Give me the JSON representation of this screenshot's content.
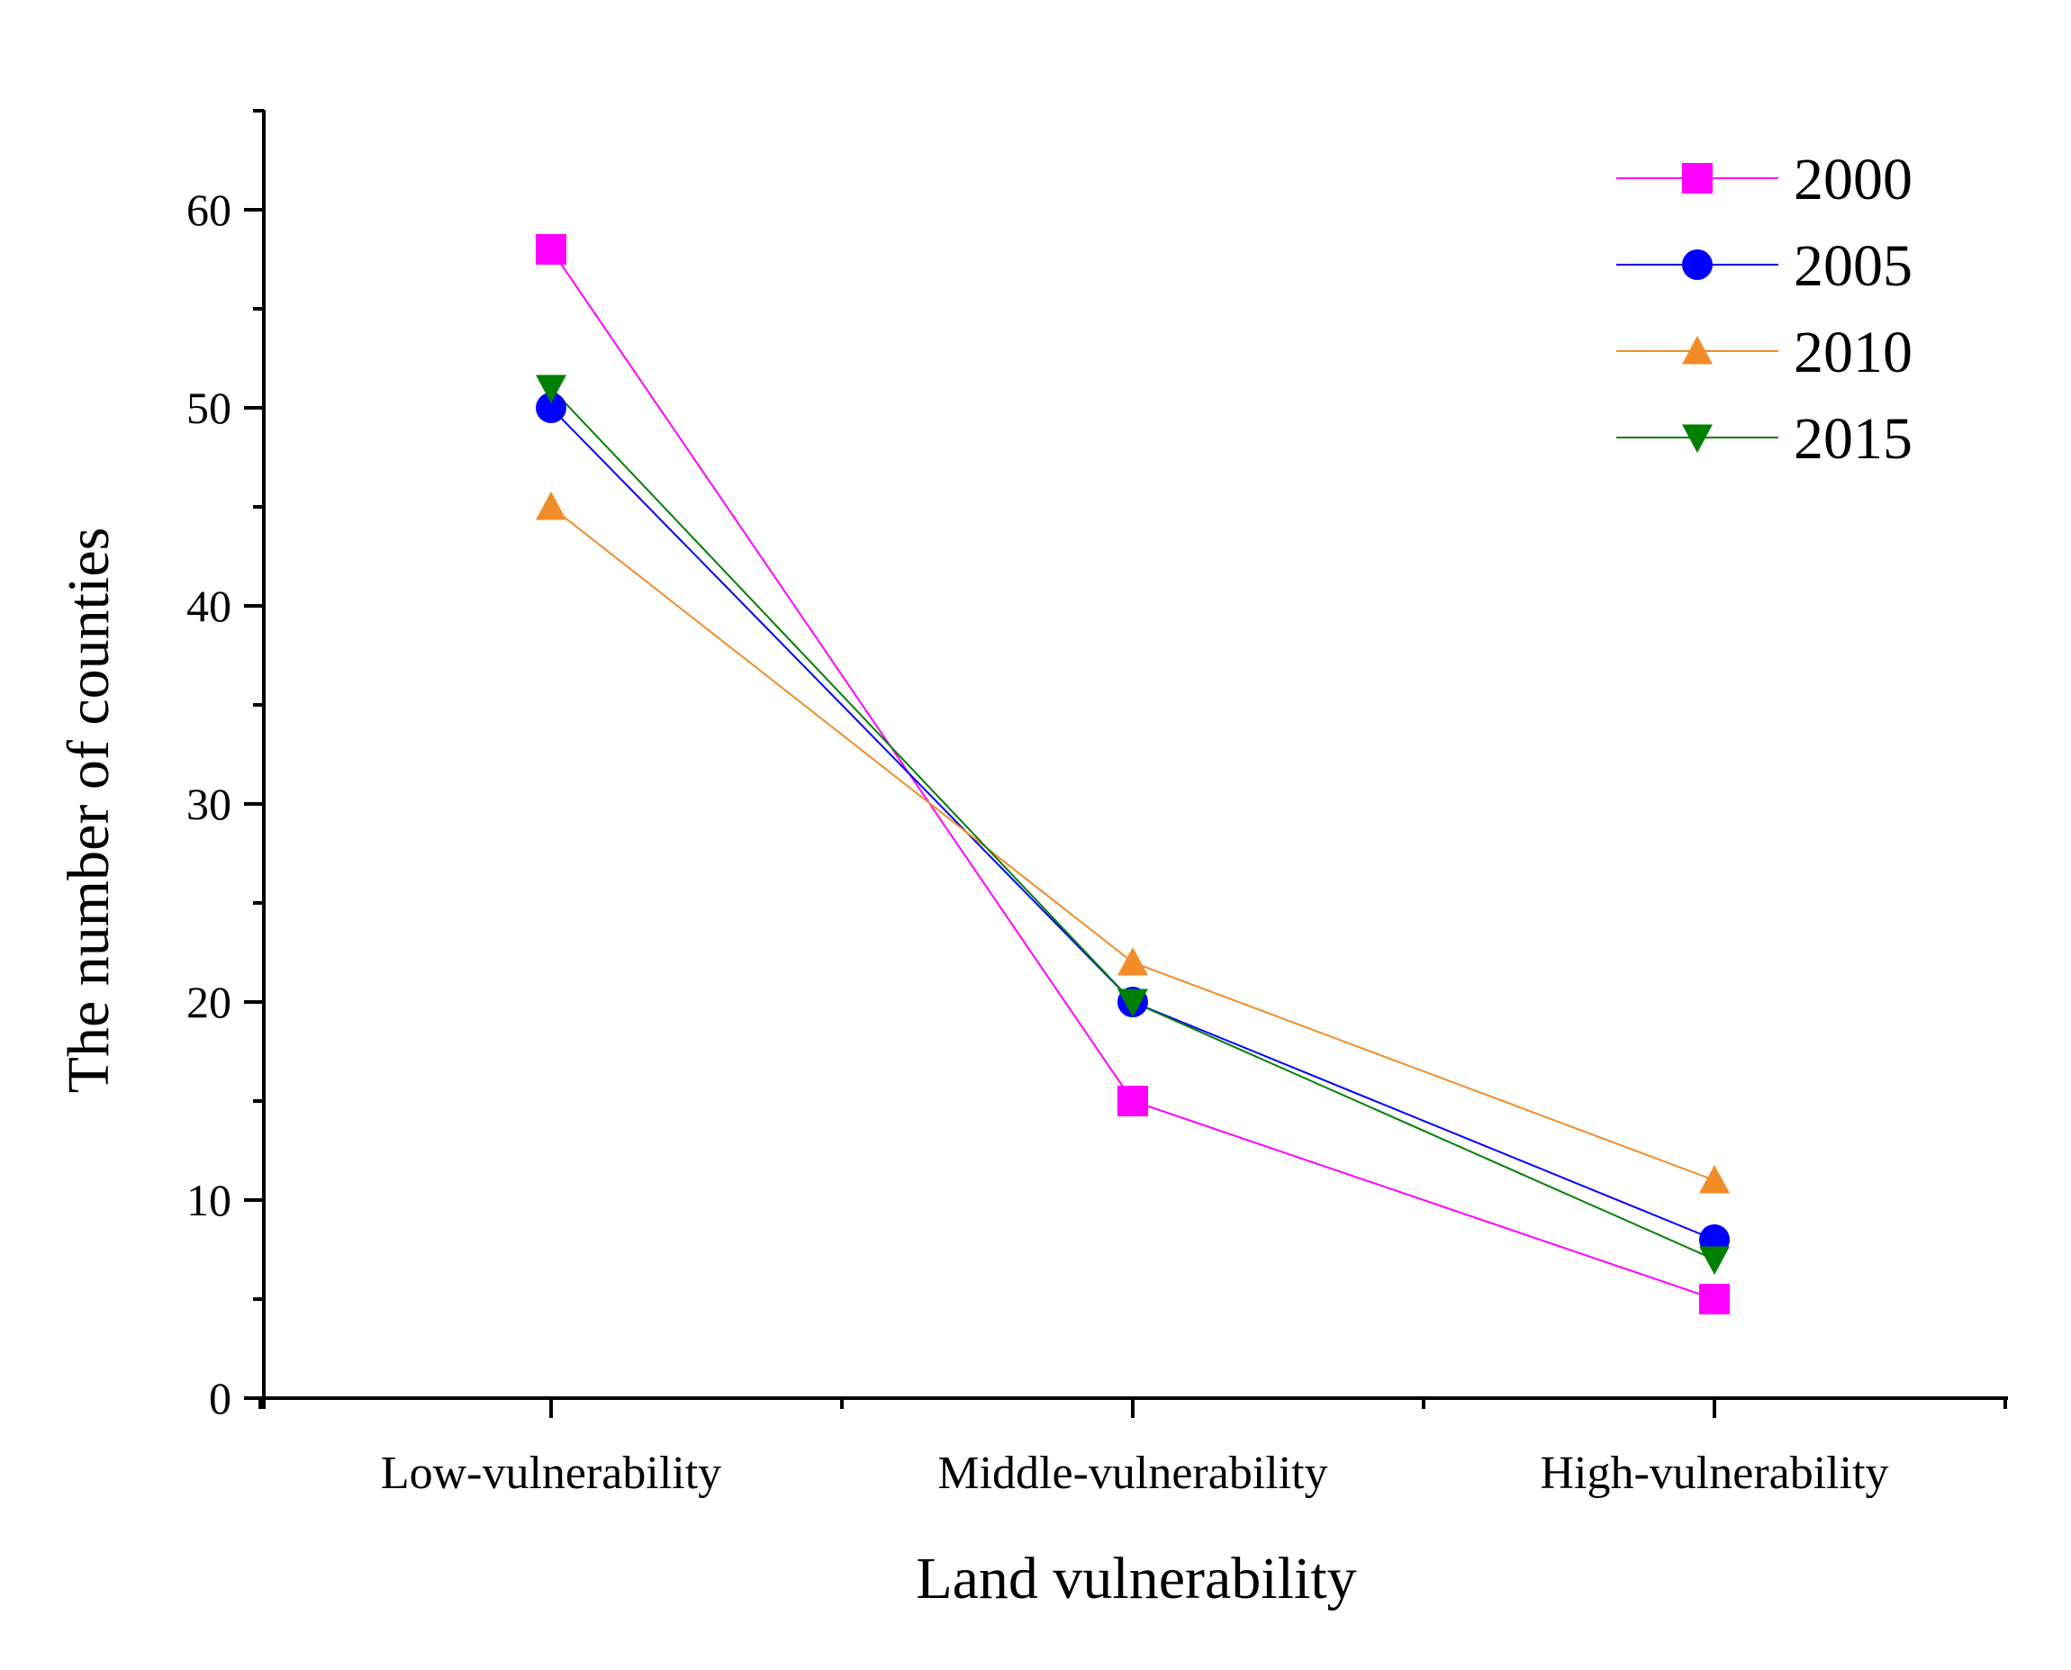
{
  "chart_data": {
    "type": "line",
    "title": "",
    "xlabel": "Land vulnerability",
    "ylabel": "The number of counties",
    "categories": [
      "Low-vulnerability",
      "Middle-vulnerability",
      "High-vulnerability"
    ],
    "ylim": [
      0,
      65
    ],
    "yticks": [
      0,
      10,
      20,
      30,
      40,
      50,
      60
    ],
    "grid": false,
    "legend_position": "top-right",
    "series": [
      {
        "name": "2000",
        "values": [
          58,
          15,
          5
        ],
        "color": "#ff00ff",
        "marker": "square"
      },
      {
        "name": "2005",
        "values": [
          50,
          20,
          8
        ],
        "color": "#0000ff",
        "marker": "circle"
      },
      {
        "name": "2010",
        "values": [
          45,
          22,
          11
        ],
        "color": "#f28c28",
        "marker": "triangle-up"
      },
      {
        "name": "2015",
        "values": [
          51,
          20,
          7
        ],
        "color": "#008000",
        "marker": "triangle-down"
      }
    ]
  }
}
